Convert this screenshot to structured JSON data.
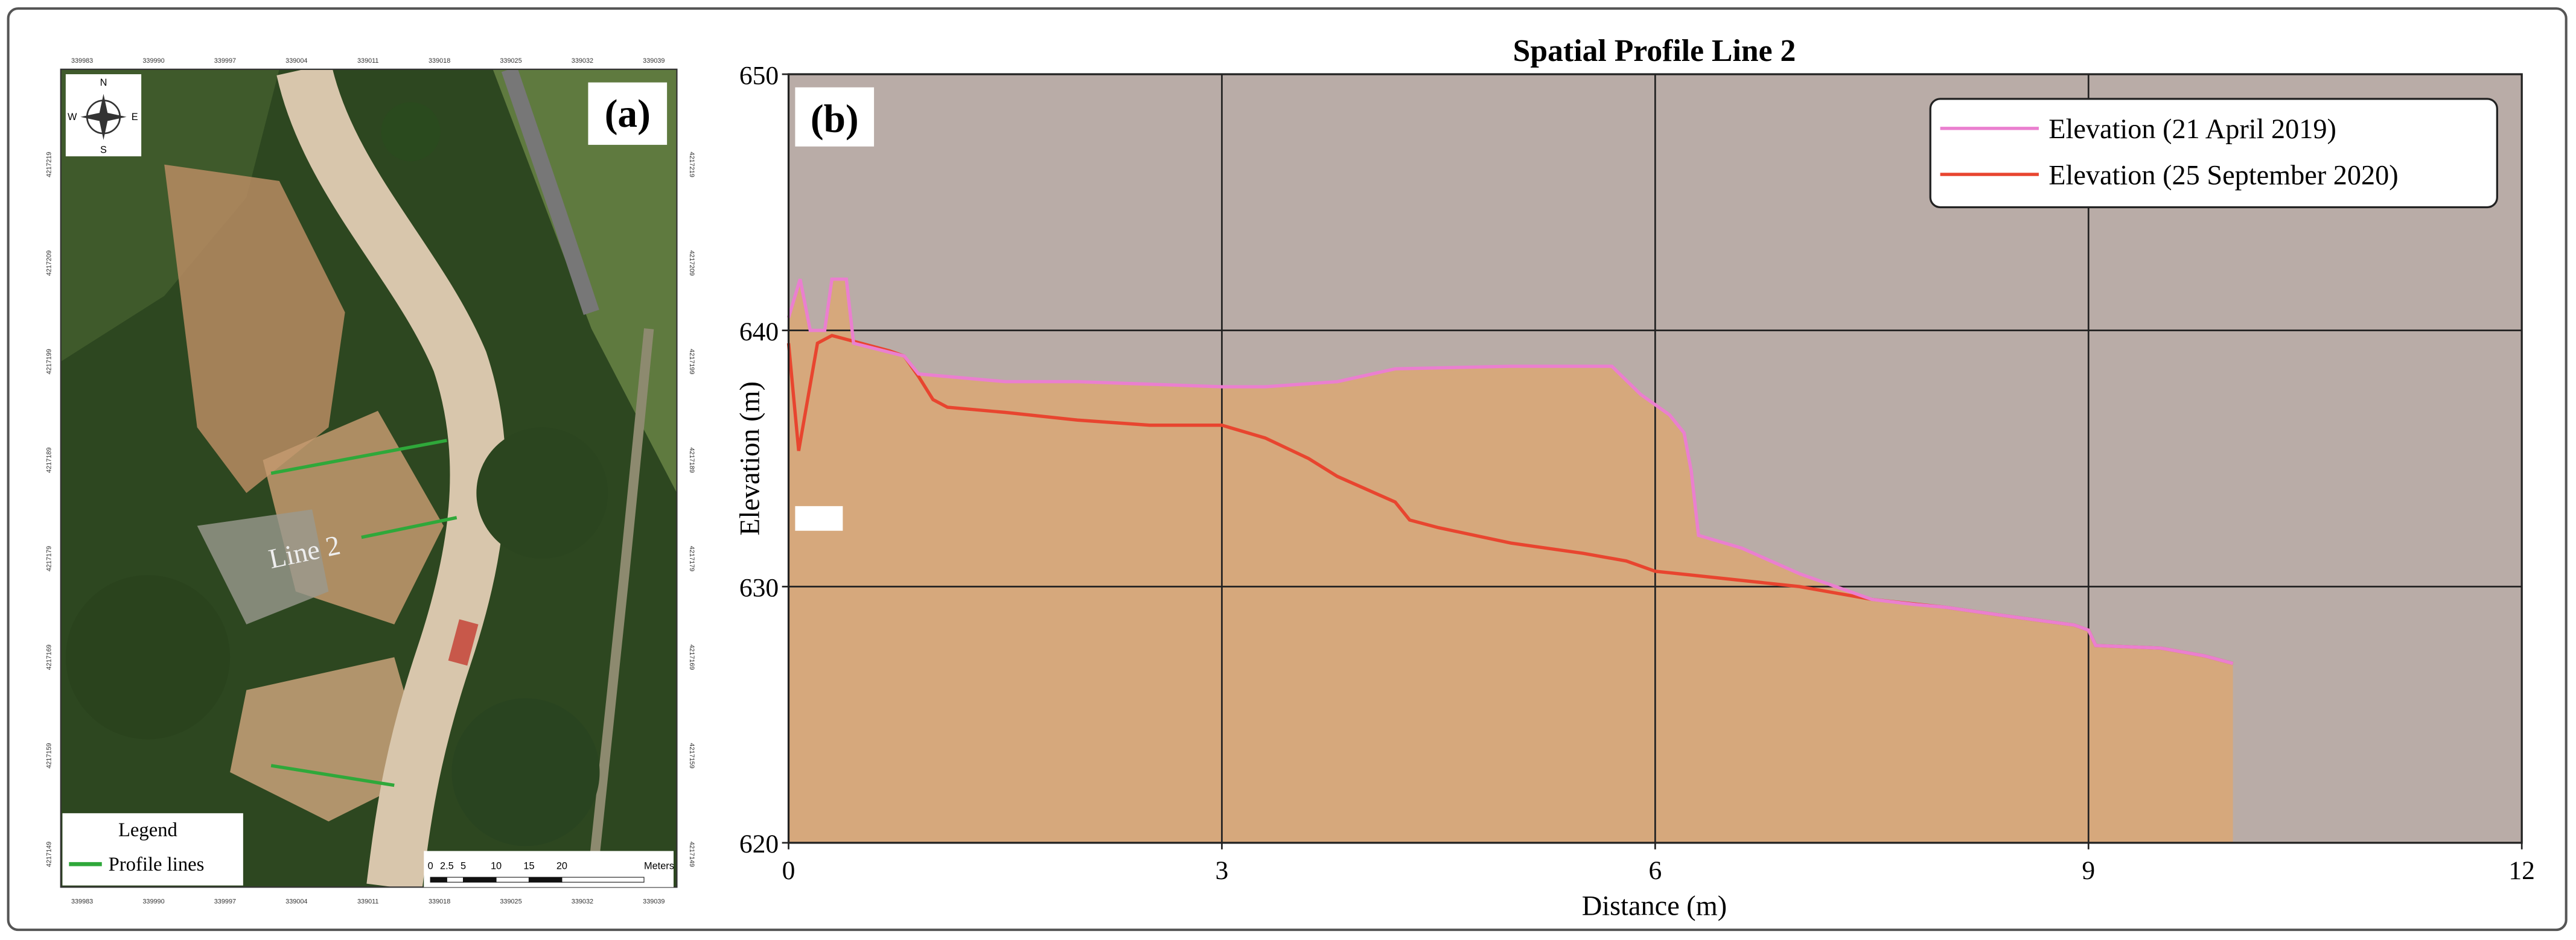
{
  "map_panel": {
    "panel_label": "(a)",
    "compass": [
      "N",
      "E",
      "S",
      "W"
    ],
    "line_label": "Line 2",
    "legend_title": "Legend",
    "legend_item": "Profile lines",
    "scale_labels": [
      "0",
      "2.5",
      "5",
      "10",
      "15",
      "20",
      "Meters"
    ],
    "easting_labels": [
      "339983",
      "339990",
      "339997",
      "339004",
      "339011",
      "339018",
      "339025",
      "339032",
      "339039"
    ],
    "northing_labels": [
      "4217219",
      "4217209",
      "4217199",
      "4217189",
      "4217179",
      "4217169",
      "4217159",
      "4217149"
    ]
  },
  "chart_data": {
    "type": "area-line",
    "title": "Spatial Profile Line 2",
    "panel_label": "(b)",
    "xlabel": "Distance (m)",
    "ylabel": "Elevation (m)",
    "xlim": [
      0,
      12
    ],
    "xticks": [
      0,
      3,
      6,
      9,
      12
    ],
    "ylim": [
      620,
      650
    ],
    "yticks": [
      620,
      630,
      640,
      650
    ],
    "grid": true,
    "background": "#b9aca7",
    "fill_color": "#d6a87c",
    "legend": "upper right",
    "series": [
      {
        "name": "Elevation (21 April 2019)",
        "color": "#ea7fcf",
        "x": [
          0,
          0.08,
          0.15,
          0.25,
          0.3,
          0.4,
          0.45,
          0.8,
          0.9,
          1.5,
          2,
          3,
          3.3,
          3.8,
          4.2,
          5,
          5.7,
          5.9,
          6.1,
          6.2,
          6.25,
          6.3,
          6.6,
          7.0,
          7.5,
          7.8,
          8.0,
          8.5,
          8.9,
          9.0,
          9.05,
          9.5,
          9.8,
          10.0
        ],
        "values": [
          640.5,
          642,
          640,
          640,
          642,
          642,
          639.5,
          639,
          638.3,
          638,
          638,
          637.8,
          637.8,
          638,
          638.5,
          638.6,
          638.6,
          637.5,
          636.7,
          636,
          634.5,
          632,
          631.5,
          630.5,
          629.5,
          629.3,
          629.2,
          628.8,
          628.5,
          628.3,
          627.7,
          627.6,
          627.3,
          627
        ]
      },
      {
        "name": "Elevation (25 September 2020)",
        "color": "#e8452f",
        "x": [
          0,
          0.07,
          0.2,
          0.3,
          0.7,
          0.8,
          0.85,
          0.9,
          1.0,
          1.1,
          1.5,
          2,
          2.5,
          3.0,
          3.3,
          3.6,
          3.8,
          4.0,
          4.2,
          4.3,
          4.5,
          5.0,
          5.5,
          5.8,
          6.0,
          6.5,
          7.0,
          7.5,
          8.0,
          8.5,
          8.9,
          9.0,
          9.05,
          9.5,
          9.8,
          10.0
        ],
        "values": [
          639.5,
          635.3,
          639.5,
          639.8,
          639.2,
          639,
          638.6,
          638.2,
          637.3,
          637,
          636.8,
          636.5,
          636.3,
          636.3,
          635.8,
          635,
          634.3,
          633.8,
          633.3,
          632.6,
          632.3,
          631.7,
          631.3,
          631,
          630.6,
          630.3,
          630,
          629.5,
          629.2,
          628.8,
          628.5,
          628.3,
          627.7,
          627.6,
          627.3,
          627
        ]
      }
    ]
  }
}
